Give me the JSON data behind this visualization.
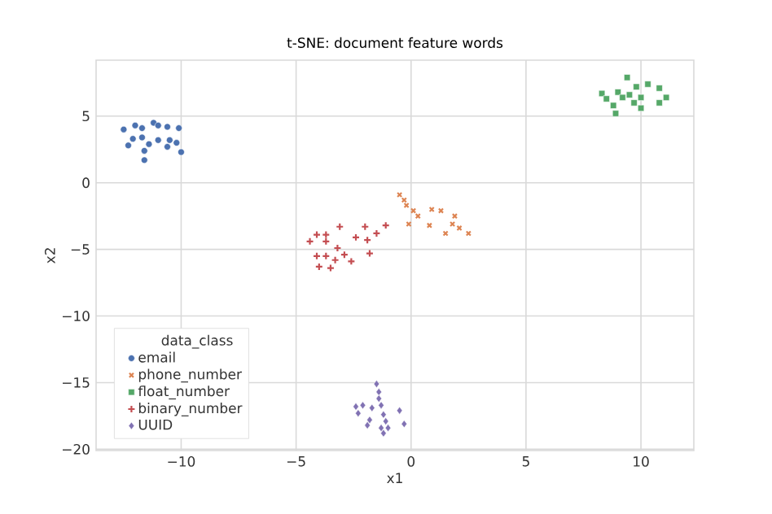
{
  "chart_data": {
    "type": "scatter",
    "title": "t-SNE: document feature words",
    "xlabel": "x1",
    "ylabel": "x2",
    "legend_title": "data_class",
    "legend": "bottom left",
    "grid": true,
    "xlim": [
      -13.7,
      12.3
    ],
    "ylim": [
      -20.1,
      9.2
    ],
    "xticks": [
      {
        "value": -10,
        "label": "−10"
      },
      {
        "value": -5,
        "label": "−5"
      },
      0,
      5,
      10
    ],
    "yticks": [
      {
        "value": -20,
        "label": "−20"
      },
      {
        "value": -15,
        "label": "−15"
      },
      {
        "value": -10,
        "label": "−10"
      },
      {
        "value": -5,
        "label": "−5"
      },
      0,
      5
    ],
    "series": [
      {
        "name": "email",
        "color": "#4c72b0",
        "marker": "circle",
        "x": [
          -12.5,
          -12.0,
          -11.7,
          -11.2,
          -11.0,
          -10.6,
          -10.1,
          -12.3,
          -12.1,
          -11.7,
          -11.4,
          -11.6,
          -11.6,
          -11.0,
          -10.6,
          -10.5,
          -10.2,
          -10.0
        ],
        "values": [
          4.0,
          4.3,
          4.1,
          4.5,
          4.3,
          4.2,
          4.1,
          2.8,
          3.3,
          3.4,
          2.9,
          2.4,
          1.7,
          3.2,
          2.7,
          3.2,
          3.0,
          2.3
        ]
      },
      {
        "name": "phone_number",
        "color": "#dd8452",
        "marker": "cross",
        "x": [
          -0.5,
          -0.3,
          -0.2,
          0.1,
          0.3,
          -0.1,
          0.8,
          0.9,
          1.3,
          1.9,
          1.8,
          2.1,
          1.5,
          2.5
        ],
        "values": [
          -0.9,
          -1.3,
          -1.7,
          -2.1,
          -2.5,
          -3.1,
          -3.2,
          -2.0,
          -2.1,
          -2.5,
          -3.1,
          -3.4,
          -3.8,
          -3.8
        ]
      },
      {
        "name": "float_number",
        "color": "#55a868",
        "marker": "square",
        "x": [
          8.3,
          8.5,
          9.0,
          9.4,
          9.8,
          10.3,
          10.8,
          11.1,
          10.8,
          8.8,
          8.9,
          9.2,
          9.5,
          9.7,
          10.0,
          10.0
        ],
        "values": [
          6.7,
          6.3,
          6.8,
          7.9,
          7.2,
          7.4,
          7.1,
          6.4,
          6.0,
          5.8,
          5.2,
          6.4,
          6.6,
          6.0,
          5.6,
          6.4
        ]
      },
      {
        "name": "binary_number",
        "color": "#c44e52",
        "marker": "plus",
        "x": [
          -4.4,
          -4.1,
          -3.7,
          -3.7,
          -3.1,
          -2.4,
          -2.0,
          -1.9,
          -1.5,
          -1.1,
          -1.8,
          -4.1,
          -3.7,
          -3.3,
          -3.2,
          -2.9,
          -2.6,
          -4.0,
          -3.5
        ],
        "values": [
          -4.4,
          -3.9,
          -3.9,
          -4.4,
          -3.3,
          -4.1,
          -3.3,
          -4.3,
          -3.8,
          -3.2,
          -5.3,
          -5.5,
          -5.5,
          -5.8,
          -4.9,
          -5.4,
          -5.9,
          -6.3,
          -6.4
        ]
      },
      {
        "name": "UUID",
        "color": "#8172b3",
        "marker": "diamond",
        "x": [
          -1.5,
          -1.4,
          -1.4,
          -2.4,
          -2.1,
          -1.7,
          -1.3,
          -0.5,
          -2.3,
          -1.8,
          -1.2,
          -1.1,
          -1.9,
          -1.3,
          -1.0,
          -1.2,
          -0.3
        ],
        "values": [
          -15.1,
          -15.7,
          -16.2,
          -16.8,
          -16.7,
          -16.9,
          -16.7,
          -17.1,
          -17.3,
          -17.8,
          -17.4,
          -17.9,
          -18.2,
          -18.4,
          -18.4,
          -18.8,
          -18.1
        ]
      }
    ]
  }
}
